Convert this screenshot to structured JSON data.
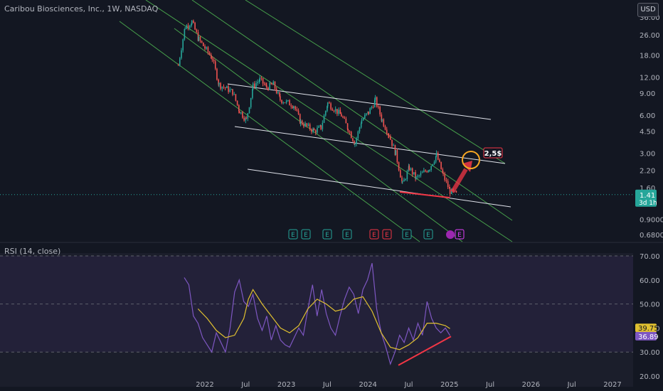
{
  "header": {
    "title": "Caribou Biosciences, Inc., 1W, NASDAQ",
    "currency": "USD"
  },
  "rsi_panel": {
    "title": "RSI (14, close)"
  },
  "price_badge": {
    "value": "1.41",
    "countdown": "3d 1h"
  },
  "target_label": "2,5$",
  "colors": {
    "background": "#131722",
    "up": "#26a69a",
    "down": "#ef5350",
    "green_channel": "#4caf50",
    "white_channel": "#e0e3eb",
    "rsi_line": "#7e57c2",
    "rsi_ma": "#e0c030",
    "divergence": "#f23645",
    "target_circle": "#f5a623"
  },
  "earnings_markers": [
    "E",
    "E",
    "E",
    "E",
    "E",
    "E",
    "E",
    "E",
    "E"
  ],
  "chart_data": [
    {
      "type": "candlestick",
      "title": "Caribou Biosciences, Inc., 1W, NASDAQ",
      "y_scale": "log",
      "y_ticks": [
        "36.00",
        "26.00",
        "18.00",
        "12.00",
        "9.00",
        "6.00",
        "4.50",
        "3.00",
        "2.20",
        "1.60",
        "0.9000",
        "0.6800"
      ],
      "x_ticks": [
        "2022",
        "Jul",
        "2023",
        "Jul",
        "2024",
        "Jul",
        "2025",
        "Jul",
        "2026",
        "Jul",
        "2027"
      ],
      "price_path": [
        [
          "2021-09",
          15.0
        ],
        [
          "2021-10",
          30.0
        ],
        [
          "2021-11",
          33.0
        ],
        [
          "2021-12",
          24.0
        ],
        [
          "2022-02",
          17.0
        ],
        [
          "2022-03",
          10.5
        ],
        [
          "2022-05",
          9.2
        ],
        [
          "2022-06",
          6.5
        ],
        [
          "2022-07",
          5.5
        ],
        [
          "2022-08",
          10.2
        ],
        [
          "2022-09",
          11.5
        ],
        [
          "2022-10",
          10.0
        ],
        [
          "2022-11",
          10.5
        ],
        [
          "2022-12",
          8.0
        ],
        [
          "2023-02",
          7.2
        ],
        [
          "2023-03",
          5.3
        ],
        [
          "2023-05",
          4.5
        ],
        [
          "2023-06",
          4.8
        ],
        [
          "2023-07",
          7.5
        ],
        [
          "2023-09",
          6.0
        ],
        [
          "2023-10",
          4.7
        ],
        [
          "2023-11",
          3.6
        ],
        [
          "2023-12",
          5.5
        ],
        [
          "2024-01",
          6.3
        ],
        [
          "2024-02",
          7.9
        ],
        [
          "2024-03",
          5.5
        ],
        [
          "2024-04",
          4.2
        ],
        [
          "2024-05",
          3.0
        ],
        [
          "2024-06",
          1.7
        ],
        [
          "2024-07",
          2.3
        ],
        [
          "2024-08",
          1.9
        ],
        [
          "2024-10",
          2.3
        ],
        [
          "2024-11",
          2.9
        ],
        [
          "2024-12",
          2.0
        ],
        [
          "2025-01",
          1.5
        ],
        [
          "2025-02",
          1.41
        ]
      ],
      "last_price": 1.41
    },
    {
      "type": "line",
      "title": "RSI (14, close)",
      "y_ticks": [
        "70.00",
        "60.00",
        "50.00",
        "40.00",
        "30.00",
        "20.00"
      ],
      "series": [
        {
          "name": "RSI",
          "last_value": 36.89,
          "values": [
            [
              0,
              61
            ],
            [
              2,
              58
            ],
            [
              4,
              45
            ],
            [
              6,
              42
            ],
            [
              8,
              36
            ],
            [
              10,
              33
            ],
            [
              12,
              30
            ],
            [
              14,
              38
            ],
            [
              16,
              34
            ],
            [
              18,
              30
            ],
            [
              20,
              40
            ],
            [
              22,
              55
            ],
            [
              24,
              60
            ],
            [
              26,
              51
            ],
            [
              28,
              49
            ],
            [
              30,
              54
            ],
            [
              32,
              44
            ],
            [
              34,
              39
            ],
            [
              36,
              45
            ],
            [
              38,
              35
            ],
            [
              40,
              41
            ],
            [
              42,
              35
            ],
            [
              44,
              33
            ],
            [
              46,
              32
            ],
            [
              48,
              36
            ],
            [
              50,
              40
            ],
            [
              52,
              37
            ],
            [
              54,
              48
            ],
            [
              56,
              58
            ],
            [
              58,
              45
            ],
            [
              60,
              56
            ],
            [
              62,
              46
            ],
            [
              64,
              40
            ],
            [
              66,
              37
            ],
            [
              68,
              45
            ],
            [
              70,
              52
            ],
            [
              72,
              57
            ],
            [
              74,
              54
            ],
            [
              76,
              46
            ],
            [
              78,
              56
            ],
            [
              80,
              60
            ],
            [
              82,
              67
            ],
            [
              84,
              48
            ],
            [
              86,
              38
            ],
            [
              88,
              32
            ],
            [
              90,
              25
            ],
            [
              92,
              30
            ],
            [
              94,
              37
            ],
            [
              96,
              34
            ],
            [
              98,
              40
            ],
            [
              100,
              35
            ],
            [
              102,
              42
            ],
            [
              104,
              37
            ],
            [
              106,
              51
            ],
            [
              108,
              44
            ],
            [
              110,
              40
            ],
            [
              112,
              38
            ],
            [
              114,
              40
            ],
            [
              116,
              36.89
            ]
          ]
        },
        {
          "name": "RSI MA",
          "last_value": 39.75,
          "values": [
            [
              6,
              48
            ],
            [
              10,
              44
            ],
            [
              14,
              39
            ],
            [
              18,
              36
            ],
            [
              22,
              37
            ],
            [
              26,
              44
            ],
            [
              28,
              52
            ],
            [
              30,
              56
            ],
            [
              34,
              50
            ],
            [
              38,
              45
            ],
            [
              42,
              40
            ],
            [
              46,
              38
            ],
            [
              50,
              41
            ],
            [
              54,
              48
            ],
            [
              58,
              52
            ],
            [
              62,
              50
            ],
            [
              66,
              47
            ],
            [
              70,
              48
            ],
            [
              74,
              52
            ],
            [
              78,
              53
            ],
            [
              82,
              47
            ],
            [
              86,
              38
            ],
            [
              90,
              32
            ],
            [
              94,
              31
            ],
            [
              98,
              33
            ],
            [
              102,
              36
            ],
            [
              106,
              42
            ],
            [
              110,
              42
            ],
            [
              114,
              41
            ],
            [
              116,
              39.75
            ]
          ]
        }
      ]
    }
  ]
}
